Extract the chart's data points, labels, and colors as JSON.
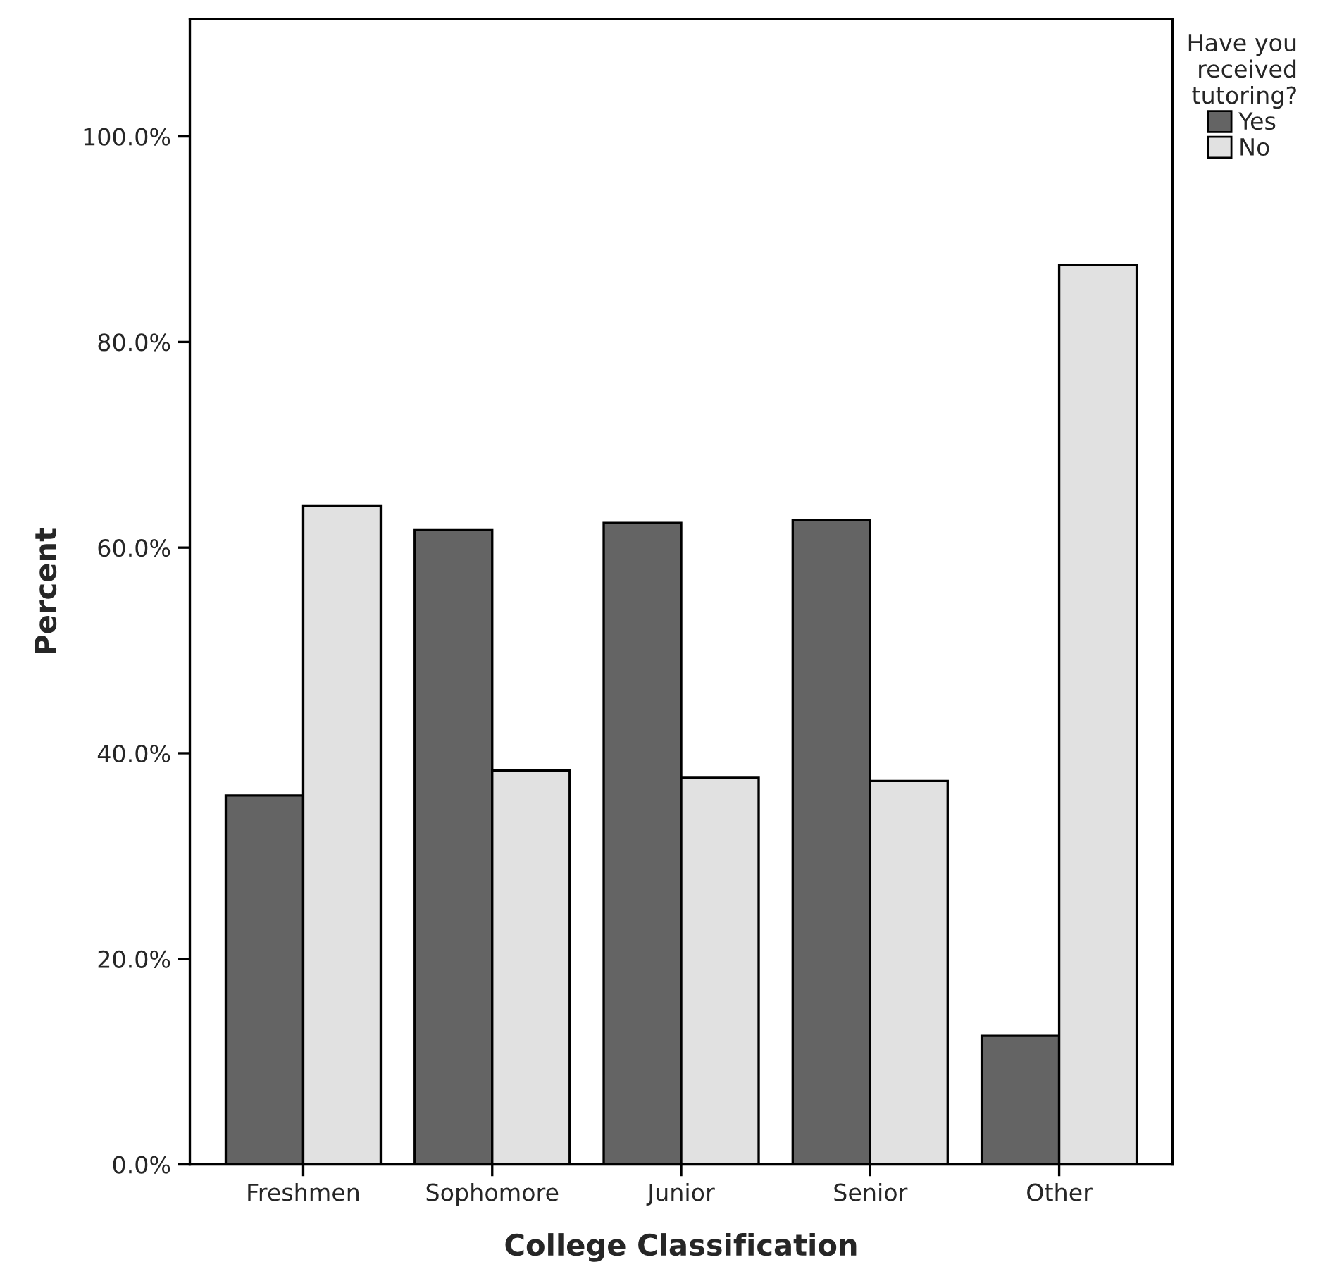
{
  "chart_data": {
    "type": "bar",
    "xlabel": "College Classification",
    "ylabel": "Percent",
    "legend_title": "Have you\nreceived\ntutoring?",
    "categories": [
      "Freshmen",
      "Sophomore",
      "Junior",
      "Senior",
      "Other"
    ],
    "series": [
      {
        "name": "Yes",
        "color": "#646464",
        "values": [
          35.9,
          61.7,
          62.4,
          62.7,
          12.5
        ]
      },
      {
        "name": "No",
        "color": "#e1e1e1",
        "values": [
          64.1,
          38.3,
          37.6,
          37.3,
          87.5
        ]
      }
    ],
    "ylim": [
      0,
      111.4
    ],
    "yticks": [
      {
        "value": 0,
        "label": "0.0%"
      },
      {
        "value": 20,
        "label": "20.0%"
      },
      {
        "value": 40,
        "label": "40.0%"
      },
      {
        "value": 60,
        "label": "60.0%"
      },
      {
        "value": 80,
        "label": "80.0%"
      },
      {
        "value": 100,
        "label": "100.0%"
      }
    ],
    "grid": false,
    "legend": "top right"
  }
}
